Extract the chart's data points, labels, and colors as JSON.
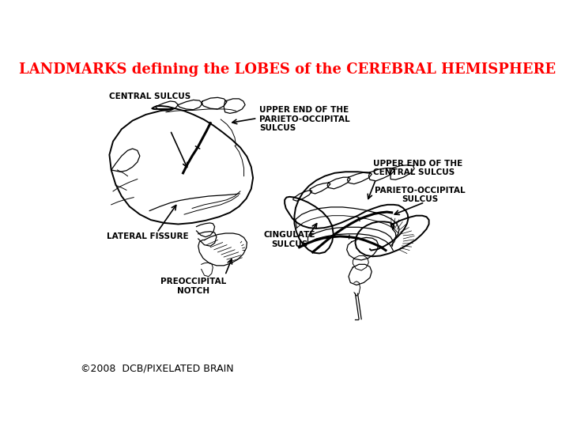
{
  "title": "LANDMARKS defining the LOBES of the CEREBRAL HEMISPHERE",
  "title_color": "#FF0000",
  "title_fontsize": 13,
  "background_color": "#FFFFFF",
  "copyright": "©2008  DCB/PIXELATED BRAIN",
  "copyright_fontsize": 9,
  "labels": {
    "central_sulcus": "CENTRAL SULCUS",
    "lateral_fissure": "LATERAL FISSURE",
    "preoccipital_notch": "PREOCCIPITAL\nNOTCH",
    "upper_end_parieto": "UPPER END OF THE\nPARIETO-OCCIPITAL\nSULCUS",
    "upper_end_central": "UPPER END OF THE\nCENTRAL SULCUS",
    "cingulate_sulcus": "CINGULATE\nSULCUS",
    "parieto_occipital": "PARIETO-OCCIPITAL\nSULCUS"
  }
}
